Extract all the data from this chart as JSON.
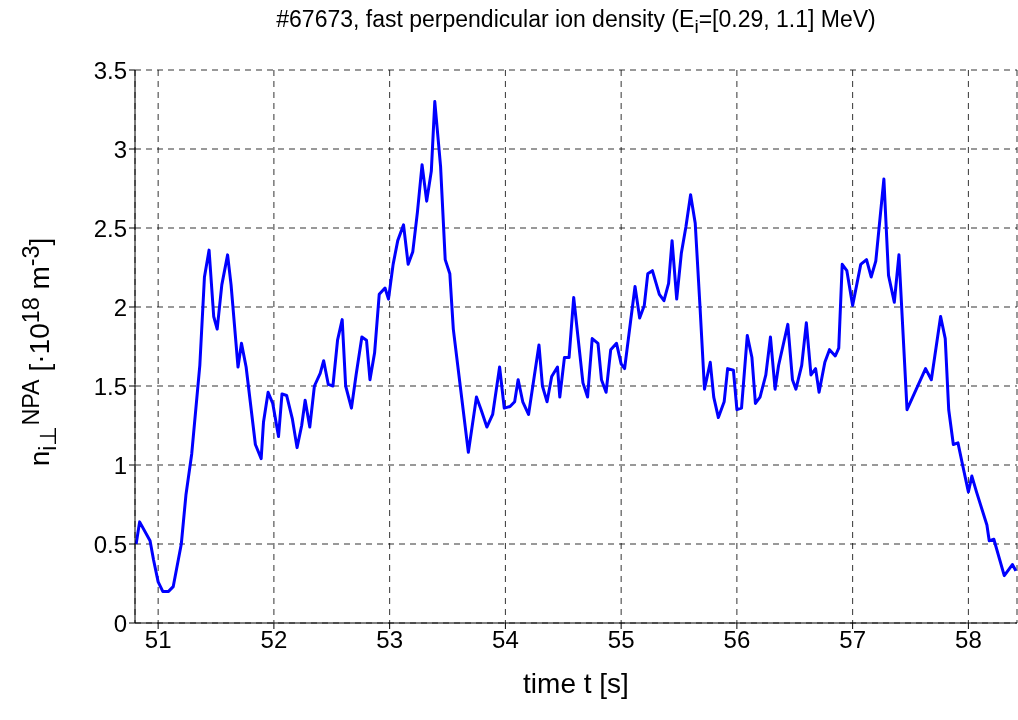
{
  "chart_data": {
    "type": "line",
    "title": "#67673, fast perpendicular ion density (E$_{i}$=[0.29, 1.1] MeV)",
    "xlabel": "time t [s]",
    "ylabel": "n$_{i⊥}$$^{NPA}$ [·10$^{18}$ m$^{-3}$]",
    "x": [
      50.81,
      50.84,
      50.93,
      50.96,
      51.0,
      51.04,
      51.09,
      51.13,
      51.2,
      51.24,
      51.29,
      51.36,
      51.4,
      51.44,
      51.48,
      51.51,
      51.55,
      51.6,
      51.63,
      51.69,
      51.72,
      51.76,
      51.84,
      51.89,
      51.91,
      51.95,
      51.99,
      52.04,
      52.07,
      52.11,
      52.16,
      52.2,
      52.24,
      52.27,
      52.31,
      52.35,
      52.4,
      52.43,
      52.47,
      52.51,
      52.55,
      52.59,
      52.62,
      52.67,
      52.71,
      52.76,
      52.8,
      52.83,
      52.87,
      52.91,
      52.96,
      52.99,
      53.03,
      53.07,
      53.12,
      53.16,
      53.2,
      53.24,
      53.28,
      53.32,
      53.36,
      53.39,
      53.44,
      53.48,
      53.52,
      53.55,
      53.61,
      53.68,
      53.75,
      53.79,
      53.84,
      53.89,
      53.95,
      53.99,
      54.04,
      54.08,
      54.11,
      54.15,
      54.2,
      54.29,
      54.32,
      54.36,
      54.4,
      54.45,
      54.47,
      54.51,
      54.55,
      54.59,
      54.63,
      54.67,
      54.71,
      54.75,
      54.8,
      54.83,
      54.87,
      54.91,
      54.96,
      55.0,
      55.03,
      55.08,
      55.12,
      55.16,
      55.2,
      55.23,
      55.27,
      55.33,
      55.37,
      55.41,
      55.44,
      55.48,
      55.52,
      55.56,
      55.6,
      55.64,
      55.68,
      55.72,
      55.77,
      55.8,
      55.84,
      55.89,
      55.92,
      55.97,
      56.0,
      56.04,
      56.09,
      56.13,
      56.16,
      56.2,
      56.25,
      56.29,
      56.33,
      56.36,
      56.44,
      56.48,
      56.51,
      56.56,
      56.6,
      56.64,
      56.68,
      56.71,
      56.76,
      56.8,
      56.85,
      56.88,
      56.91,
      56.95,
      57.0,
      57.07,
      57.12,
      57.16,
      57.2,
      57.27,
      57.31,
      57.36,
      57.4,
      57.47,
      57.55,
      57.63,
      57.68,
      57.71,
      57.76,
      57.8,
      57.83,
      57.87,
      57.91,
      57.95,
      58.0,
      58.03,
      58.07,
      58.16,
      58.18,
      58.22,
      58.31,
      58.38,
      58.41
    ],
    "series": [
      {
        "color": "#0000ff",
        "values": [
          0.5,
          0.64,
          0.52,
          0.4,
          0.26,
          0.2,
          0.2,
          0.23,
          0.5,
          0.81,
          1.07,
          1.63,
          2.19,
          2.36,
          1.94,
          1.86,
          2.14,
          2.33,
          2.14,
          1.62,
          1.77,
          1.62,
          1.13,
          1.04,
          1.27,
          1.46,
          1.39,
          1.18,
          1.45,
          1.44,
          1.29,
          1.11,
          1.25,
          1.41,
          1.24,
          1.5,
          1.58,
          1.66,
          1.51,
          1.5,
          1.79,
          1.92,
          1.5,
          1.36,
          1.57,
          1.81,
          1.79,
          1.54,
          1.71,
          2.08,
          2.12,
          2.05,
          2.27,
          2.42,
          2.52,
          2.27,
          2.35,
          2.6,
          2.9,
          2.67,
          2.86,
          3.3,
          2.89,
          2.3,
          2.21,
          1.86,
          1.5,
          1.08,
          1.43,
          1.35,
          1.24,
          1.32,
          1.62,
          1.36,
          1.37,
          1.4,
          1.54,
          1.4,
          1.32,
          1.76,
          1.5,
          1.4,
          1.56,
          1.62,
          1.43,
          1.68,
          1.68,
          2.06,
          1.79,
          1.52,
          1.43,
          1.8,
          1.77,
          1.54,
          1.46,
          1.73,
          1.77,
          1.64,
          1.61,
          1.9,
          2.13,
          1.93,
          2.01,
          2.21,
          2.23,
          2.08,
          2.04,
          2.15,
          2.42,
          2.05,
          2.34,
          2.51,
          2.71,
          2.53,
          2.02,
          1.48,
          1.65,
          1.43,
          1.3,
          1.4,
          1.61,
          1.6,
          1.35,
          1.36,
          1.82,
          1.68,
          1.39,
          1.43,
          1.57,
          1.81,
          1.48,
          1.63,
          1.89,
          1.54,
          1.48,
          1.63,
          1.9,
          1.57,
          1.61,
          1.46,
          1.65,
          1.73,
          1.69,
          1.74,
          2.27,
          2.23,
          2.01,
          2.27,
          2.3,
          2.19,
          2.29,
          2.81,
          2.2,
          2.03,
          2.33,
          1.35,
          1.48,
          1.61,
          1.54,
          1.69,
          1.94,
          1.8,
          1.35,
          1.13,
          1.14,
          1.0,
          0.83,
          0.93,
          0.83,
          0.62,
          0.52,
          0.53,
          0.3,
          0.37,
          0.33
        ]
      }
    ],
    "xlim": [
      50.8,
      58.42
    ],
    "xticks": [
      51,
      52,
      53,
      54,
      55,
      56,
      57,
      58
    ],
    "ylim": [
      0,
      3.5
    ],
    "yticks": [
      0,
      0.5,
      1,
      1.5,
      2,
      2.5,
      3,
      3.5
    ],
    "grid": true,
    "line_style": "solid",
    "marker": "none"
  }
}
